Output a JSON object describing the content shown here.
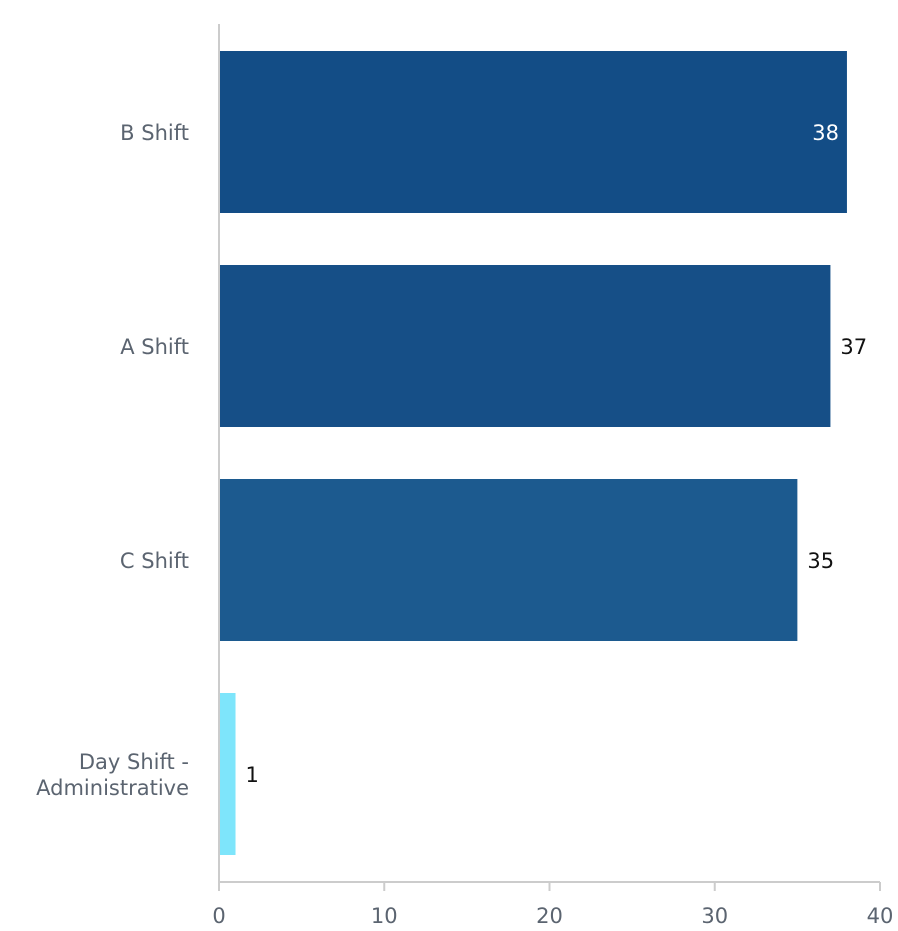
{
  "chart_data": {
    "type": "bar",
    "orientation": "horizontal",
    "categories": [
      [
        "B Shift"
      ],
      [
        "A Shift"
      ],
      [
        "C Shift"
      ],
      [
        "Day Shift -",
        "Administrative"
      ]
    ],
    "values": [
      38,
      37,
      35,
      1
    ],
    "colors": [
      "#134d86",
      "#164f87",
      "#1c5a8f",
      "#7ee5fb"
    ],
    "value_label_colors": [
      "#ffffff",
      "#111111",
      "#111111",
      "#111111"
    ],
    "value_label_inside": [
      true,
      false,
      false,
      false
    ],
    "xlim": [
      0,
      40
    ],
    "x_ticks": [
      0,
      10,
      20,
      30,
      40
    ],
    "grid": false,
    "legend": "none"
  }
}
